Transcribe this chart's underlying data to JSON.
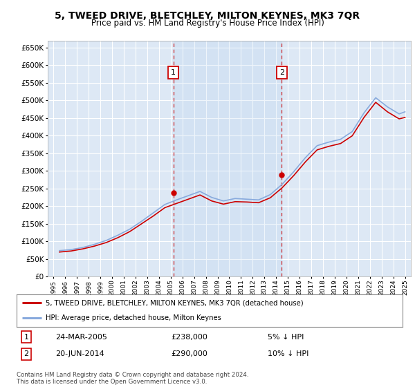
{
  "title": "5, TWEED DRIVE, BLETCHLEY, MILTON KEYNES, MK3 7QR",
  "subtitle": "Price paid vs. HM Land Registry's House Price Index (HPI)",
  "ylim": [
    0,
    670000
  ],
  "yticks": [
    0,
    50000,
    100000,
    150000,
    200000,
    250000,
    300000,
    350000,
    400000,
    450000,
    500000,
    550000,
    600000,
    650000
  ],
  "xlim_start": 1994.5,
  "xlim_end": 2025.5,
  "background_color": "#ffffff",
  "plot_bg_color": "#dde8f5",
  "grid_color": "#ffffff",
  "transaction1": {
    "year": 2005.23,
    "price": 238000,
    "label": "1",
    "date": "24-MAR-2005",
    "pct": "5%"
  },
  "transaction2": {
    "year": 2014.47,
    "price": 290000,
    "label": "2",
    "date": "20-JUN-2014",
    "pct": "10%"
  },
  "legend_label_red": "5, TWEED DRIVE, BLETCHLEY, MILTON KEYNES, MK3 7QR (detached house)",
  "legend_label_blue": "HPI: Average price, detached house, Milton Keynes",
  "footnote": "Contains HM Land Registry data © Crown copyright and database right 2024.\nThis data is licensed under the Open Government Licence v3.0.",
  "red_color": "#cc0000",
  "blue_color": "#88aadd",
  "hpi_years": [
    1995.5,
    1996.5,
    1997.5,
    1998.5,
    1999.5,
    2000.5,
    2001.5,
    2002.5,
    2003.5,
    2004.5,
    2005.5,
    2006.5,
    2007.5,
    2008.5,
    2009.5,
    2010.5,
    2011.5,
    2012.5,
    2013.5,
    2014.5,
    2015.5,
    2016.5,
    2017.5,
    2018.5,
    2019.5,
    2020.5,
    2021.5,
    2022.5,
    2023.5,
    2024.5,
    2025.0
  ],
  "hpi_values": [
    74000,
    77000,
    83000,
    92000,
    103000,
    118000,
    135000,
    157000,
    181000,
    205000,
    218000,
    230000,
    242000,
    225000,
    215000,
    222000,
    220000,
    218000,
    233000,
    262000,
    298000,
    338000,
    372000,
    382000,
    390000,
    412000,
    465000,
    508000,
    482000,
    462000,
    468000
  ],
  "red_years": [
    1995.5,
    1996.5,
    1997.5,
    1998.5,
    1999.5,
    2000.5,
    2001.5,
    2002.5,
    2003.5,
    2004.5,
    2005.5,
    2006.5,
    2007.5,
    2008.5,
    2009.5,
    2010.5,
    2011.5,
    2012.5,
    2013.5,
    2014.5,
    2015.5,
    2016.5,
    2017.5,
    2018.5,
    2019.5,
    2020.5,
    2021.5,
    2022.5,
    2023.5,
    2024.5,
    2025.0
  ],
  "red_values": [
    70000,
    73000,
    79000,
    87000,
    97000,
    111000,
    128000,
    150000,
    172000,
    196000,
    208000,
    220000,
    232000,
    215000,
    206000,
    213000,
    212000,
    210000,
    224000,
    252000,
    287000,
    326000,
    360000,
    370000,
    378000,
    400000,
    452000,
    495000,
    468000,
    448000,
    452000
  ]
}
